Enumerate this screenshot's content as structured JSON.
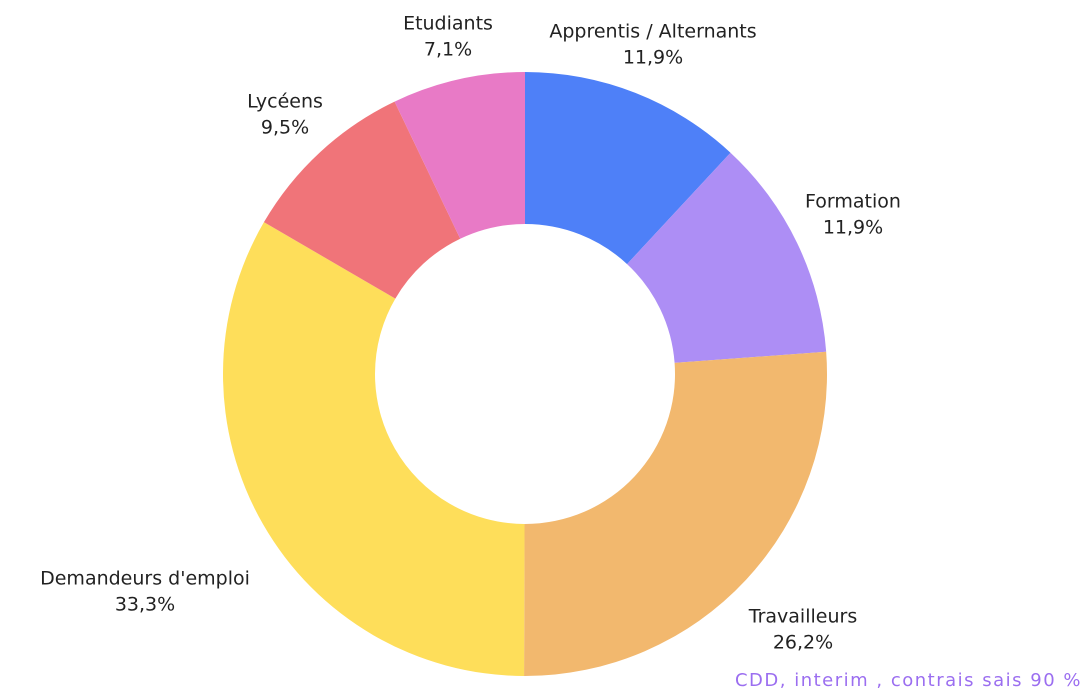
{
  "chart_data": {
    "type": "donut",
    "categories": [
      "Apprentis / Alternants",
      "Formation",
      "Travailleurs",
      "Demandeurs d'emploi",
      "Lycéens",
      "Etudiants"
    ],
    "values": [
      11.9,
      11.9,
      26.2,
      33.3,
      9.5,
      7.1
    ],
    "value_labels": [
      "11,9%",
      "11,9%",
      "26,2%",
      "33,3%",
      "9,5%",
      "7,1%"
    ],
    "colors": [
      "#4e80f8",
      "#ad8ef5",
      "#f2b86e",
      "#fede5a",
      "#f07479",
      "#e87ac6"
    ],
    "annotation": "CDD, interim , contrais sais 90 %"
  }
}
